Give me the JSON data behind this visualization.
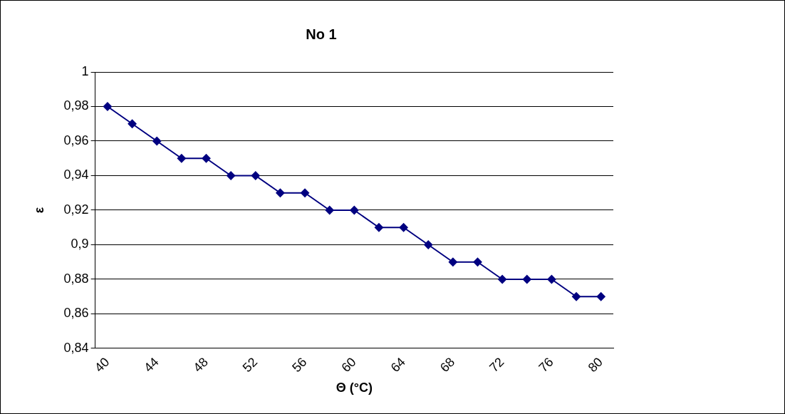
{
  "chart_data": {
    "type": "line",
    "title": "No 1",
    "xlabel": "Θ (°C)",
    "ylabel": "ε",
    "categories": [
      "40",
      null,
      "44",
      null,
      "48",
      null,
      "52",
      null,
      "56",
      null,
      "60",
      null,
      "64",
      null,
      "68",
      null,
      "72",
      null,
      "76",
      null,
      "80"
    ],
    "series": [
      {
        "color": "#000080",
        "values": [
          0.98,
          0.97,
          0.96,
          0.95,
          0.95,
          0.94,
          0.94,
          0.93,
          0.93,
          0.92,
          0.92,
          0.91,
          0.91,
          0.9,
          0.89,
          0.89,
          0.88,
          0.88,
          0.88,
          0.87,
          0.87
        ]
      }
    ],
    "ylim": [
      0.84,
      1
    ],
    "yticks": [
      {
        "value": 0.84,
        "label": "0,84"
      },
      {
        "value": 0.86,
        "label": "0,86"
      },
      {
        "value": 0.88,
        "label": "0,88"
      },
      {
        "value": 0.9,
        "label": "0,9"
      },
      {
        "value": 0.92,
        "label": "0,92"
      },
      {
        "value": 0.94,
        "label": "0,94"
      },
      {
        "value": 0.96,
        "label": "0,96"
      },
      {
        "value": 0.98,
        "label": "0,98"
      },
      1
    ],
    "grid": "y",
    "legend": false,
    "marker": "diamond",
    "line_style": "solid"
  }
}
